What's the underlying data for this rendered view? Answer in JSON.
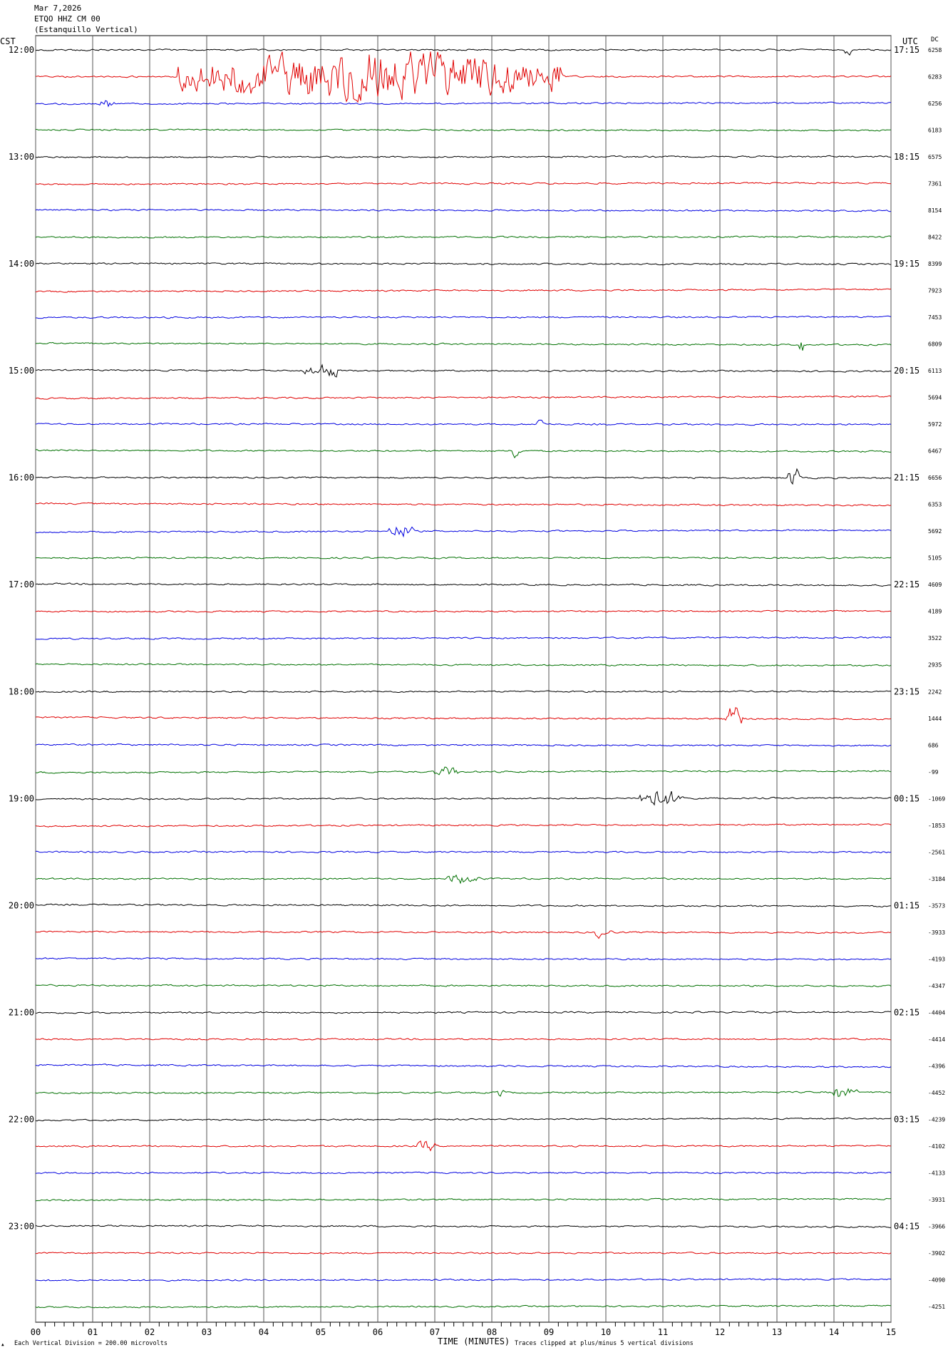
{
  "header": {
    "date": "Mar 7,2026",
    "station": "ETQO HHZ CM 00",
    "location": "(Estanquillo Vertical)"
  },
  "footer": {
    "scale_note": "Each Vertical Division =  200.00 microvolts",
    "clip_note": "Traces clipped at plus/minus 5 vertical divisions",
    "mark": "▲"
  },
  "chart_data": {
    "type": "line",
    "title": "",
    "xlabel": "TIME (MINUTES)",
    "ylabel_left": "CST",
    "ylabel_right": "UTC",
    "dc_label": "DC",
    "xlim": [
      0,
      15
    ],
    "x_ticks": [
      "00",
      "01",
      "02",
      "03",
      "04",
      "05",
      "06",
      "07",
      "08",
      "09",
      "10",
      "11",
      "12",
      "13",
      "14",
      "15"
    ],
    "traces_per_hour": 4,
    "trace_colors": [
      "#000000",
      "#e00000",
      "#0000e0",
      "#007000"
    ],
    "hours_cst": [
      "12:00",
      "13:00",
      "14:00",
      "15:00",
      "16:00",
      "17:00",
      "18:00",
      "19:00",
      "20:00",
      "21:00",
      "22:00",
      "23:00"
    ],
    "hours_utc": [
      "17:15",
      "18:15",
      "19:15",
      "20:15",
      "21:15",
      "22:15",
      "23:15",
      "00:15",
      "01:15",
      "02:15",
      "03:15",
      "04:15"
    ],
    "dc_offsets": [
      6258,
      6283,
      6256,
      6183,
      6575,
      7361,
      8154,
      8422,
      8399,
      7923,
      7453,
      6809,
      6113,
      5694,
      5972,
      6467,
      6656,
      6353,
      5692,
      5105,
      4609,
      4189,
      3522,
      2935,
      2242,
      1444,
      686,
      -99,
      -1069,
      -1853,
      -2561,
      -3184,
      -3573,
      -3933,
      -4193,
      -4347,
      -4404,
      -4414,
      -4396,
      -4452,
      -4239,
      -4102,
      -4133,
      -3931,
      -3966,
      -3902,
      -4090,
      -4251
    ],
    "events": [
      {
        "trace": 1,
        "start_min": 2.5,
        "peak_min": 6.0,
        "end_min": 9.2,
        "amplitude": 1.6
      },
      {
        "trace": 25,
        "start_min": 12.1,
        "peak_min": 12.25,
        "end_min": 12.4,
        "amplitude": 1.3
      },
      {
        "trace": 28,
        "start_min": 10.6,
        "peak_min": 10.9,
        "end_min": 11.4,
        "amplitude": 0.6
      },
      {
        "trace": 18,
        "start_min": 6.2,
        "peak_min": 6.4,
        "end_min": 6.6,
        "amplitude": 0.5
      },
      {
        "trace": 12,
        "start_min": 4.7,
        "peak_min": 5.1,
        "end_min": 5.3,
        "amplitude": 0.45
      },
      {
        "trace": 16,
        "start_min": 13.2,
        "peak_min": 13.3,
        "end_min": 13.4,
        "amplitude": 0.7
      },
      {
        "trace": 11,
        "start_min": 13.4,
        "peak_min": 13.45,
        "end_min": 13.5,
        "amplitude": 0.6
      },
      {
        "trace": 0,
        "start_min": 14.2,
        "peak_min": 14.25,
        "end_min": 14.3,
        "amplitude": 0.35
      },
      {
        "trace": 39,
        "start_min": 14.0,
        "peak_min": 14.1,
        "end_min": 14.4,
        "amplitude": 0.4
      },
      {
        "trace": 41,
        "start_min": 6.7,
        "peak_min": 6.85,
        "end_min": 7.0,
        "amplitude": 0.35
      },
      {
        "trace": 31,
        "start_min": 7.2,
        "peak_min": 7.4,
        "end_min": 7.8,
        "amplitude": 0.3
      },
      {
        "trace": 33,
        "start_min": 9.8,
        "peak_min": 9.9,
        "end_min": 10.1,
        "amplitude": 0.3
      },
      {
        "trace": 14,
        "start_min": 8.8,
        "peak_min": 8.85,
        "end_min": 8.9,
        "amplitude": 0.5
      },
      {
        "trace": 15,
        "start_min": 8.3,
        "peak_min": 8.4,
        "end_min": 8.5,
        "amplitude": 0.4
      },
      {
        "trace": 2,
        "start_min": 1.1,
        "peak_min": 1.2,
        "end_min": 1.4,
        "amplitude": 0.3
      },
      {
        "trace": 19,
        "start_min": 14.0,
        "peak_min": 13.9,
        "end_min": 14.0,
        "amplitude": 0.3
      },
      {
        "trace": 27,
        "start_min": 7.0,
        "peak_min": 7.2,
        "end_min": 7.4,
        "amplitude": 0.3
      },
      {
        "trace": 39,
        "start_min": 8.1,
        "peak_min": 8.15,
        "end_min": 8.2,
        "amplitude": 0.35
      }
    ]
  }
}
